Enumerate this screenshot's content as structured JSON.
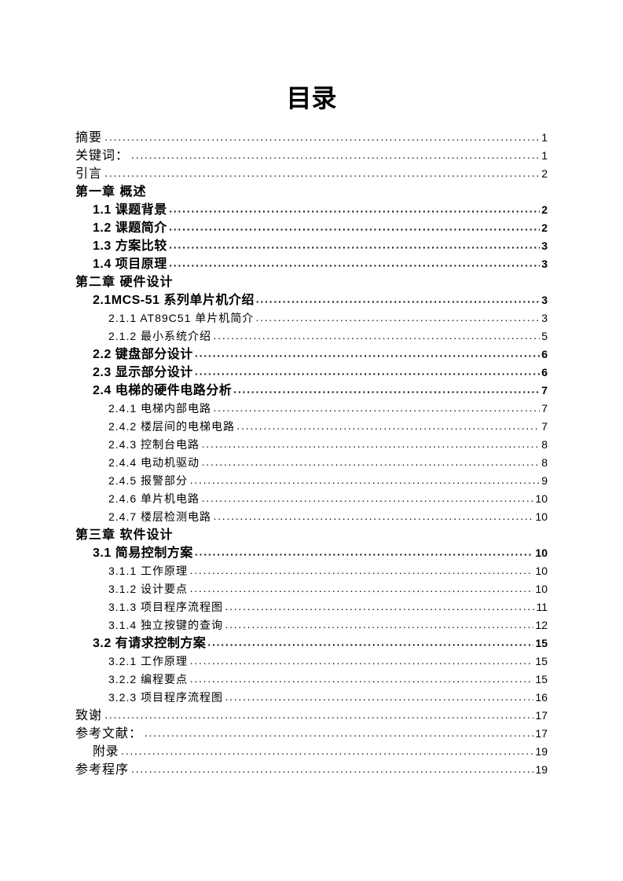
{
  "title": "目录",
  "background_color": "#ffffff",
  "text_color": "#000000",
  "entries": [
    {
      "level": "l0",
      "label": "摘要",
      "page": "1"
    },
    {
      "level": "l0",
      "label": "关键词：",
      "page": "1"
    },
    {
      "level": "l0",
      "label": "引言",
      "page": "2"
    },
    {
      "level": "ch",
      "label": "第一章 概述"
    },
    {
      "level": "l1",
      "label": "1.1 课题背景",
      "page": "2"
    },
    {
      "level": "l1",
      "label": "1.2 课题简介",
      "page": "2"
    },
    {
      "level": "l1",
      "label": "1.3 方案比较",
      "page": "3"
    },
    {
      "level": "l1",
      "label": "1.4 项目原理",
      "page": "3"
    },
    {
      "level": "ch",
      "label": "第二章 硬件设计"
    },
    {
      "level": "l1",
      "label": "2.1MCS-51 系列单片机介绍",
      "page": "3"
    },
    {
      "level": "l2",
      "label": "2.1.1 AT89C51 单片机简介",
      "page": "3"
    },
    {
      "level": "l2",
      "label": "2.1.2 最小系统介绍",
      "page": "5"
    },
    {
      "level": "l1",
      "label": "2.2 键盘部分设计",
      "page": "6"
    },
    {
      "level": "l1",
      "label": "2.3 显示部分设计",
      "page": "6"
    },
    {
      "level": "l1",
      "label": "2.4 电梯的硬件电路分析",
      "page": "7"
    },
    {
      "level": "l2",
      "label": "2.4.1 电梯内部电路",
      "page": "7"
    },
    {
      "level": "l2",
      "label": "2.4.2 楼层间的电梯电路",
      "page": "7"
    },
    {
      "level": "l2",
      "label": "2.4.3 控制台电路",
      "page": "8"
    },
    {
      "level": "l2",
      "label": "2.4.4 电动机驱动",
      "page": "8"
    },
    {
      "level": "l2",
      "label": "2.4.5 报警部分",
      "page": "9"
    },
    {
      "level": "l2",
      "label": "2.4.6 单片机电路",
      "page": "10"
    },
    {
      "level": "l2",
      "label": "2.4.7 楼层检测电路",
      "page": "10"
    },
    {
      "level": "ch",
      "label": "第三章  软件设计"
    },
    {
      "level": "l1",
      "label": "3.1 简易控制方案",
      "page": "10"
    },
    {
      "level": "l2",
      "label": "3.1.1 工作原理",
      "page": "10"
    },
    {
      "level": "l2",
      "label": "3.1.2 设计要点",
      "page": "10"
    },
    {
      "level": "l2",
      "label": "3.1.3 项目程序流程图",
      "page": "11"
    },
    {
      "level": "l2",
      "label": "3.1.4 独立按键的查询",
      "page": "12"
    },
    {
      "level": "l1",
      "label": "3.2 有请求控制方案",
      "page": "15"
    },
    {
      "level": "l2",
      "label": "3.2.1 工作原理",
      "page": "15"
    },
    {
      "level": "l2",
      "label": "3.2.2 编程要点",
      "page": "15"
    },
    {
      "level": "l2",
      "label": "3.2.3 项目程序流程图",
      "page": "16"
    },
    {
      "level": "l0",
      "label": "致谢",
      "page": "17"
    },
    {
      "level": "l0",
      "label": "参考文献：",
      "page": "17"
    },
    {
      "level": "l1",
      "label": "附录",
      "page": "19",
      "weight": "normal"
    },
    {
      "level": "l0",
      "label": "参考程序",
      "page": "19"
    }
  ]
}
